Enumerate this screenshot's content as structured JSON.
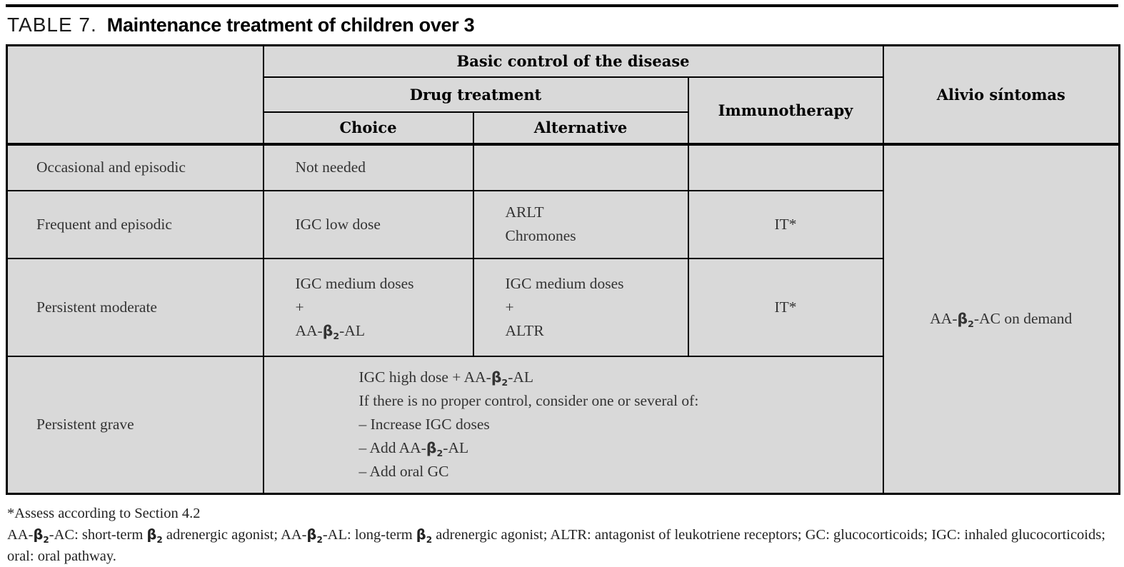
{
  "page": {
    "title_label": "TABLE 7.",
    "title_text": "Maintenance treatment of children over 3"
  },
  "table": {
    "headers": {
      "basic_control": "Basic control of the disease",
      "drug_treatment": "Drug treatment",
      "choice": "Choice",
      "alternative": "Alternative",
      "immunotherapy": "Immunotherapy",
      "symptom_relief": "Alivio síntomas"
    },
    "rows": [
      {
        "severity": "Occasional and episodic",
        "choice": "Not needed",
        "alternative": "",
        "immunotherapy": ""
      },
      {
        "severity": "Frequent and episodic",
        "choice": "IGC low dose",
        "alternative": "ARLT\nChromones",
        "immunotherapy": "IT*"
      },
      {
        "severity": "Persistent moderate",
        "choice": "IGC medium doses\n+\nAA-β₂-AL",
        "alternative": "IGC medium doses\n+\nALTR",
        "immunotherapy": "IT*"
      },
      {
        "severity": "Persistent grave",
        "combined_treatment": "IGC high dose + AA-β₂-AL\nIf there is no proper control, consider one or several of:\n– Increase IGC doses\n– Add AA-β₂-AL\n– Add oral GC"
      }
    ],
    "symptom_relief_value": "AA-β₂-AC on demand"
  },
  "footnotes": {
    "assess_note": "*Assess according to Section 4.2",
    "abbreviations": "AA-β₂-AC: short-term β₂ adrenergic agonist; AA-β₂-AL: long-term β₂ adrenergic agonist; ALTR: antagonist of leukotriene receptors; GC: glucocorticoids; IGC: inhaled glucocorticoids; oral: oral pathway."
  },
  "colors": {
    "cell_background": "#d9d9d9",
    "border": "#000000",
    "body_text": "#333333",
    "header_text": "#000000"
  }
}
